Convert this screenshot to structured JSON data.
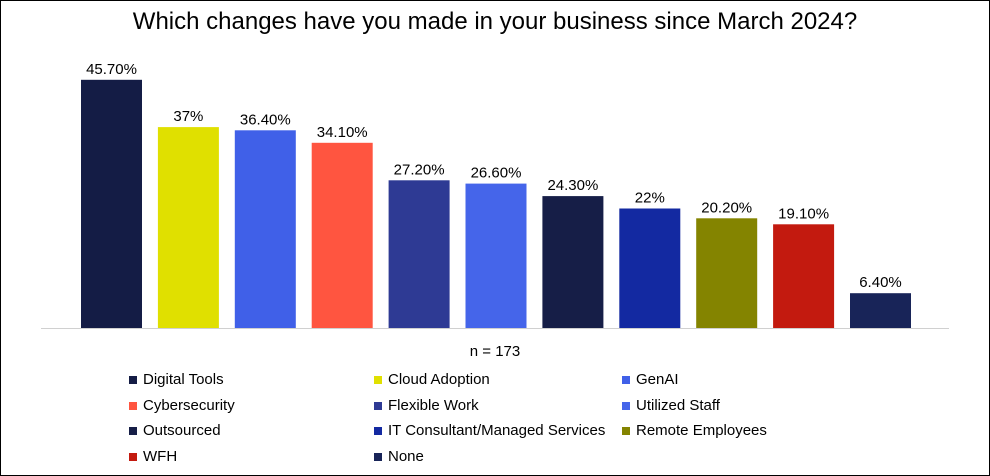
{
  "chart_data": {
    "type": "bar",
    "title": "Which changes have you made in your business since March 2024?",
    "note": "n = 173",
    "xlabel": "",
    "ylabel": "",
    "ylim": [
      0,
      50
    ],
    "grid": false,
    "legend": "bottom",
    "categories": [
      "Digital Tools",
      "Cloud Adoption",
      "GenAI",
      "Cybersecurity",
      "Flexible Work",
      "Utilized Staff",
      "Outsourced",
      "IT Consultant/Managed Services",
      "Remote Employees",
      "WFH",
      "None"
    ],
    "values": [
      45.7,
      37,
      36.4,
      34.1,
      27.2,
      26.6,
      24.3,
      22,
      20.2,
      19.1,
      6.4
    ],
    "value_labels": [
      "45.70%",
      "37%",
      "36.40%",
      "34.10%",
      "27.20%",
      "26.60%",
      "24.30%",
      "22%",
      "20.20%",
      "19.10%",
      "6.40%"
    ],
    "colors": [
      "#141C45",
      "#E0E000",
      "#4060E8",
      "#FF5540",
      "#2E3A94",
      "#4565EA",
      "#161E47",
      "#1329A1",
      "#848400",
      "#C31A0F",
      "#182458"
    ]
  }
}
